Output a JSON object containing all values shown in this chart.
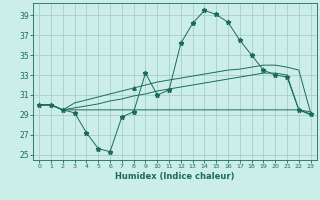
{
  "title": "",
  "xlabel": "Humidex (Indice chaleur)",
  "bg_color": "#cceee8",
  "grid_color": "#aacccc",
  "line_color": "#1a6b5a",
  "xlim": [
    -0.5,
    23.5
  ],
  "ylim": [
    24.5,
    40.2
  ],
  "xticks": [
    0,
    1,
    2,
    3,
    4,
    5,
    6,
    7,
    8,
    9,
    10,
    11,
    12,
    13,
    14,
    15,
    16,
    17,
    18,
    19,
    20,
    21,
    22,
    23
  ],
  "yticks": [
    25,
    27,
    29,
    31,
    33,
    35,
    37,
    39
  ],
  "x": [
    0,
    1,
    2,
    3,
    4,
    5,
    6,
    7,
    8,
    9,
    10,
    11,
    12,
    13,
    14,
    15,
    16,
    17,
    18,
    19,
    20,
    21,
    22,
    23
  ],
  "line1_jagged": [
    30.0,
    30.0,
    29.5,
    29.2,
    27.2,
    25.6,
    25.3,
    28.8,
    29.3,
    33.2,
    31.0,
    31.5,
    36.2,
    38.2,
    39.5,
    39.1,
    38.3,
    36.5,
    35.0,
    33.5,
    33.0,
    32.8,
    29.5,
    29.1
  ],
  "line2_flat": [
    30.0,
    30.0,
    29.5,
    29.5,
    29.5,
    29.5,
    29.5,
    29.5,
    29.5,
    29.5,
    29.5,
    29.5,
    29.5,
    29.5,
    29.5,
    29.5,
    29.5,
    29.5,
    29.5,
    29.5,
    29.5,
    29.5,
    29.5,
    29.3
  ],
  "line3_upper": [
    30.0,
    30.0,
    29.5,
    30.2,
    30.5,
    30.8,
    31.1,
    31.4,
    31.7,
    32.0,
    32.3,
    32.5,
    32.7,
    32.9,
    33.1,
    33.3,
    33.5,
    33.6,
    33.8,
    34.0,
    34.0,
    33.8,
    33.5,
    29.2
  ],
  "line4_lower": [
    30.0,
    30.0,
    29.5,
    29.7,
    29.9,
    30.1,
    30.4,
    30.6,
    30.9,
    31.1,
    31.4,
    31.6,
    31.8,
    32.0,
    32.2,
    32.4,
    32.6,
    32.8,
    33.0,
    33.2,
    33.2,
    33.0,
    29.5,
    29.0
  ]
}
